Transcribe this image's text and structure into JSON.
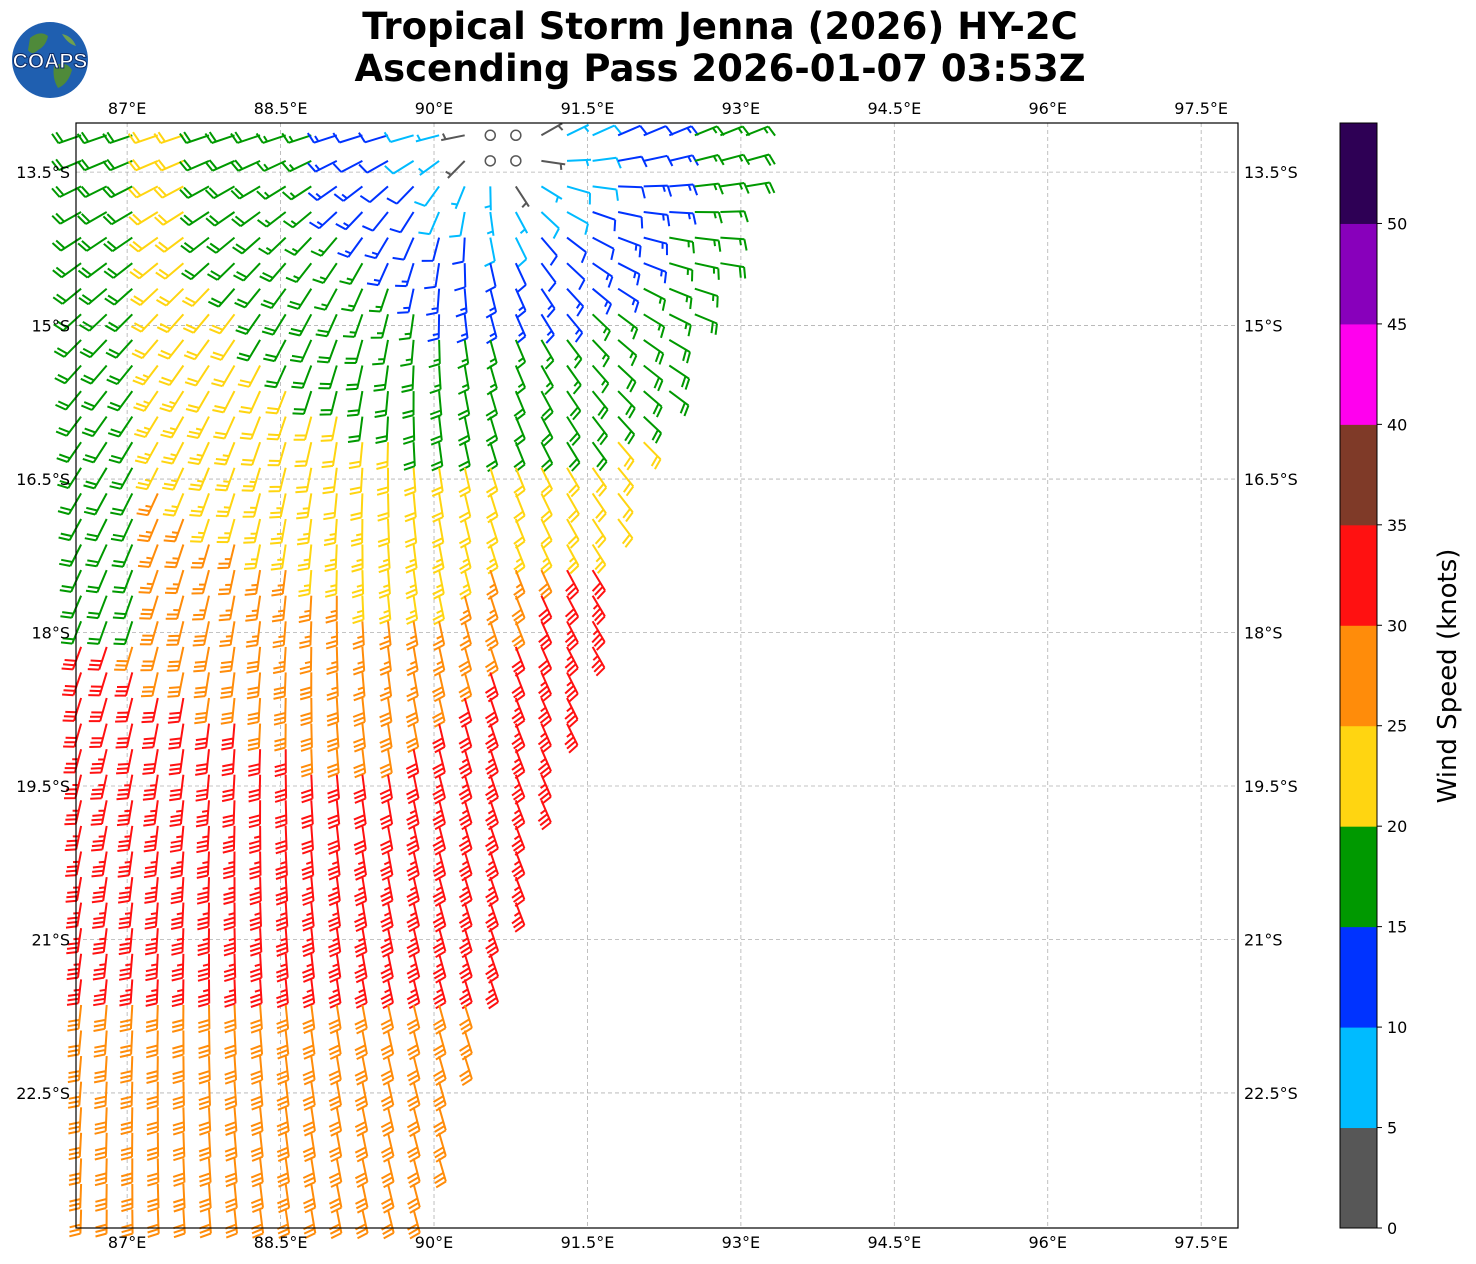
{
  "title": {
    "line1": "Tropical Storm Jenna (2026) HY-2C",
    "line2": "Ascending Pass 2026-01-07 03:53Z"
  },
  "logo": {
    "text": "COAPS",
    "ocean_color": "#1f5fb0",
    "land_color": "#4f8a3a"
  },
  "map": {
    "lon_range": [
      86.5,
      97.86
    ],
    "lat_range": [
      -23.82,
      -13.02
    ],
    "lon_ticks": [
      {
        "value": 87.0,
        "label": "87°E"
      },
      {
        "value": 88.5,
        "label": "88.5°E"
      },
      {
        "value": 90.0,
        "label": "90°E"
      },
      {
        "value": 91.5,
        "label": "91.5°E"
      },
      {
        "value": 93.0,
        "label": "93°E"
      },
      {
        "value": 94.5,
        "label": "94.5°E"
      },
      {
        "value": 96.0,
        "label": "96°E"
      },
      {
        "value": 97.5,
        "label": "97.5°E"
      }
    ],
    "lat_ticks": [
      {
        "value": -13.5,
        "label": "13.5°S"
      },
      {
        "value": -15.0,
        "label": "15°S"
      },
      {
        "value": -16.5,
        "label": "16.5°S"
      },
      {
        "value": -18.0,
        "label": "18°S"
      },
      {
        "value": -19.5,
        "label": "19.5°S"
      },
      {
        "value": -21.0,
        "label": "21°S"
      },
      {
        "value": -22.5,
        "label": "22.5°S"
      }
    ],
    "grid": true,
    "swath_east_edge": [
      {
        "lat": -13.02,
        "lon": 93.3
      },
      {
        "lat": -14.0,
        "lon": 93.0
      },
      {
        "lat": -15.0,
        "lon": 92.6
      },
      {
        "lat": -16.0,
        "lon": 92.2
      },
      {
        "lat": -17.0,
        "lon": 91.8
      },
      {
        "lat": -18.0,
        "lon": 91.6
      },
      {
        "lat": -19.0,
        "lon": 91.3
      },
      {
        "lat": -20.0,
        "lon": 91.0
      },
      {
        "lat": -21.0,
        "lon": 90.7
      },
      {
        "lat": -22.0,
        "lon": 90.4
      },
      {
        "lat": -23.0,
        "lon": 90.1
      },
      {
        "lat": -23.82,
        "lon": 89.9
      }
    ],
    "storm_center": {
      "lat": -13.2,
      "lon": 90.7
    },
    "grid_spacing_deg": 0.25
  },
  "colorbar": {
    "label": "Wind Speed (knots)",
    "bins": [
      {
        "min": 0,
        "max": 5,
        "color": "#575757"
      },
      {
        "min": 5,
        "max": 10,
        "color": "#00bbff"
      },
      {
        "min": 10,
        "max": 15,
        "color": "#0033ff"
      },
      {
        "min": 15,
        "max": 20,
        "color": "#009900"
      },
      {
        "min": 20,
        "max": 25,
        "color": "#ffd511"
      },
      {
        "min": 25,
        "max": 30,
        "color": "#ff8c0a"
      },
      {
        "min": 30,
        "max": 35,
        "color": "#ff1111"
      },
      {
        "min": 35,
        "max": 40,
        "color": "#7f3a28"
      },
      {
        "min": 40,
        "max": 45,
        "color": "#ff00ee"
      },
      {
        "min": 45,
        "max": 50,
        "color": "#8800bb"
      },
      {
        "min": 50,
        "max": 55,
        "color": "#2e0055"
      }
    ],
    "tick_values": [
      0,
      5,
      10,
      15,
      20,
      25,
      30,
      35,
      40,
      45,
      50
    ],
    "tick_labels": [
      "0",
      "5",
      "10",
      "15",
      "20",
      "25",
      "30",
      "35",
      "40",
      "45",
      "50"
    ]
  }
}
